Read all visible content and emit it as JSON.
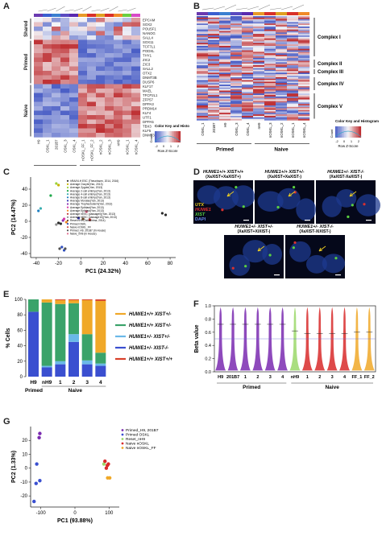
{
  "panels": {
    "A": {
      "label": "A",
      "row_groups": [
        "Shared",
        "Primed",
        "Naive"
      ],
      "shared_genes": [
        "EPCAM",
        "SOX2",
        "POU5F1",
        "NANOG",
        "SALL4"
      ],
      "primed_genes": [
        "SOX11",
        "TCF7L1",
        "PODXL",
        "THY1",
        "ZIC2",
        "ZIC3",
        "SALL2",
        "OTX2",
        "DNMT3B",
        "DUSP6"
      ],
      "naive_genes": [
        "KLF17",
        "MAEL",
        "TFCP2L1",
        "ZFP57",
        "DPPA3",
        "PRDM14",
        "KLF4",
        "UTF1",
        "DPPA5",
        "TBX3",
        "KLF5",
        "DNMT3L"
      ],
      "columns": [
        "H9",
        "OSKL_1",
        "201B7",
        "OSKL_3",
        "OSKL_4",
        "nOSKL_FF_1",
        "nOSKL_FF_2",
        "nOSKL_2",
        "nOSKL_3",
        "nH9",
        "nOSKL_1",
        "nOSKL_4"
      ],
      "groups": [
        "Primed",
        "Naive"
      ],
      "color_key": {
        "title": "Color Key and Histogram",
        "xlabel": "Row Z-Score",
        "ylabel": "Count",
        "ticks": [
          "-2",
          "0",
          "1",
          "2"
        ],
        "yticks": [
          "0",
          "4",
          "8",
          "12"
        ]
      }
    },
    "B": {
      "label": "B",
      "complexes": [
        "Complex I",
        "Complex II",
        "Complex III",
        "Complex IV",
        "Complex V"
      ],
      "columns": [
        "OSKL_1",
        "201B7",
        "H9",
        "OSKL_3",
        "OSKL_4",
        "nH9",
        "nOSKL_3",
        "nOSKL_2",
        "nOSKL_1",
        "nOSKL_4"
      ],
      "groups": [
        "Primed",
        "Naive"
      ],
      "color_key": {
        "title": "Color Key and Histogram",
        "xlabel": "Row Z-Score",
        "ylabel": "Count",
        "ticks": [
          "-2",
          "0",
          "1",
          "2"
        ],
        "yticks": [
          "0",
          "30"
        ]
      }
    },
    "C": {
      "label": "C",
      "xlabel": "PC1 (24.32%)",
      "ylabel": "PC2 (14.47%)",
      "xticks": [
        "-40",
        "-20",
        "0",
        "20",
        "40",
        "60",
        "80"
      ],
      "yticks": [
        "-40",
        "-20",
        "0",
        "20",
        "40"
      ],
      "legend": [
        "hRA/NI-H ESC (Theunissen, 2014, 2016)",
        "Average Oocyte(Yan, 2013)",
        "Average Zygote(Yan, 2013)",
        "Average 2-cell embryo(Yan, 2013)",
        "Average 4-cell embryo(Yan, 2013)",
        "Average 8-cell embryo(Yan, 2013)",
        "Average Morulae(Yan, 2013)",
        "Average Trophectoderm(Yan, 2013)",
        "Average Epiblast(Yan, 2013)",
        "Average Epiblast(Yan, 2013)",
        "Average hESC (passage0)(Yan, 2013)",
        "Average hESC (passage10)(Yan, 2013)",
        "Reset nH9 (Takashima, 2014)",
        "Primed OSKL",
        "Naive nOSKL_FF",
        "Primed_H9, 201B7 (In House)",
        "Naive_nH9 (In House)"
      ],
      "legend_colors": [
        "#2a2a2a",
        "#c8b400",
        "#9ad23a",
        "#1fa84a",
        "#3aaeb0",
        "#1e7fc2",
        "#3d3db5",
        "#8a2fb0",
        "#d83aa8",
        "#f08a2a",
        "#c03030",
        "#909090",
        "#6a4a2a",
        "#3050c0",
        "#d05050",
        "#505050",
        "#e07090"
      ],
      "chart_data": {
        "type": "scatter",
        "xlabel": "PC1 (24.32%)",
        "ylabel": "PC2 (14.47%)",
        "xlim": [
          -45,
          85
        ],
        "ylim": [
          -45,
          55
        ],
        "points": [
          {
            "x": -22,
            "y": 47,
            "c": "#9ad23a"
          },
          {
            "x": -20,
            "y": 45,
            "c": "#c8b400"
          },
          {
            "x": -27,
            "y": 32,
            "c": "#1fa84a"
          },
          {
            "x": -36,
            "y": 16,
            "c": "#3aaeb0"
          },
          {
            "x": -38,
            "y": 13,
            "c": "#1e7fc2"
          },
          {
            "x": -16,
            "y": 1,
            "c": "#8a2fb0"
          },
          {
            "x": -15,
            "y": 3,
            "c": "#d83aa8"
          },
          {
            "x": -13,
            "y": -1,
            "c": "#f08a2a"
          },
          {
            "x": -20,
            "y": -2,
            "c": "#2a2a2a"
          },
          {
            "x": -18,
            "y": -3,
            "c": "#2a2a2a"
          },
          {
            "x": -22,
            "y": -4,
            "c": "#909090"
          },
          {
            "x": -2,
            "y": 4,
            "c": "#3d3db5"
          },
          {
            "x": 2,
            "y": 3,
            "c": "#6a4a2a"
          },
          {
            "x": 8,
            "y": 2,
            "c": "#c03030"
          },
          {
            "x": -17,
            "y": -32,
            "c": "#3050c0"
          },
          {
            "x": -15,
            "y": -36,
            "c": "#3050c0"
          },
          {
            "x": -19,
            "y": -34,
            "c": "#505050"
          },
          {
            "x": -14,
            "y": -34,
            "c": "#505050"
          },
          {
            "x": 73,
            "y": 10,
            "c": "#2a2a2a"
          },
          {
            "x": 76,
            "y": 8,
            "c": "#2a2a2a"
          },
          {
            "x": 5,
            "y": 12,
            "c": "#e07090"
          }
        ]
      }
    },
    "D": {
      "label": "D",
      "titles": [
        "HUWE1+/+ XIST+/+",
        "HUWE1+/+ XIST+/-",
        "HUWE1+/- XIST-/-",
        "HUWE1+/- XIST+/-",
        "HUWE1+/- XIST-/-"
      ],
      "subtitles": [
        "(XaXIST+XaXIST+)",
        "(XaXIST+XaXIST-)",
        "(XaXIST-XaXIST-)",
        "(XaXIST+XiXIST-)",
        "(XaXIST-XiXIST-)"
      ],
      "stain_utx": "UTX",
      "stain_huwe1": "HUWE1",
      "stain_xist": "XIST",
      "stain_dapi": "DAPI"
    },
    "E": {
      "label": "E",
      "ylabel": "% Cells",
      "yticks": [
        "0",
        "20",
        "40",
        "60",
        "80",
        "100"
      ],
      "groups": [
        "Primed",
        "Naive"
      ],
      "legend": [
        "HUWE1+/+ XIST+/-",
        "HUWE1+/+ XIST+/-",
        "HUWE1+/- XIST+/-",
        "HUWE1+/- XIST-/-",
        "HUWE1+/+ XIST+/+"
      ],
      "legend_colors": [
        "#f0a828",
        "#3aa36a",
        "#6ab8e8",
        "#3a4fd0",
        "#d8402a"
      ],
      "chart_data": {
        "type": "bar",
        "stacked": true,
        "categories": [
          "H9",
          "nH9",
          "1",
          "2",
          "3",
          "4"
        ],
        "ylim": [
          0,
          100
        ],
        "series": [
          {
            "name": "HUWE1+/- XIST-/-",
            "color": "#3a4fd0",
            "values": [
              84,
              12,
              16,
              45,
              16,
              14
            ]
          },
          {
            "name": "HUWE1+/- XIST+/-",
            "color": "#6ab8e8",
            "values": [
              0,
              2,
              4,
              10,
              5,
              3
            ]
          },
          {
            "name": "HUWE1+/+ XIST+/-",
            "color": "#3aa36a",
            "values": [
              16,
              82,
              74,
              40,
              34,
              14
            ]
          },
          {
            "name": "HUWE1+/+ XIST+/-",
            "color": "#f0a828",
            "values": [
              0,
              4,
              5,
              4,
              44,
              67
            ]
          },
          {
            "name": "HUWE1+/+ XIST+/+",
            "color": "#d8402a",
            "values": [
              0,
              0,
              1,
              1,
              1,
              2
            ]
          }
        ]
      }
    },
    "F": {
      "label": "F",
      "ylabel": "Beta value",
      "yticks": [
        "0.0",
        "0.2",
        "0.4",
        "0.6",
        "0.8",
        "1.0"
      ],
      "groups": [
        "Primed",
        "Naive"
      ],
      "chart_data": {
        "type": "violin",
        "categories": [
          "H9",
          "201B7",
          "1",
          "2",
          "3",
          "4",
          "nH9",
          "1",
          "2",
          "3",
          "4",
          "FF_1",
          "FF_2"
        ],
        "colors": [
          "#7a2ab0",
          "#7a2ab0",
          "#7a2ab0",
          "#7a2ab0",
          "#7a2ab0",
          "#7a2ab0",
          "#9bd86a",
          "#d82a2a",
          "#d82a2a",
          "#d82a2a",
          "#d82a2a",
          "#f0a828",
          "#f0a828"
        ],
        "medians": [
          0.72,
          0.72,
          0.72,
          0.72,
          0.72,
          0.72,
          0.62,
          0.58,
          0.58,
          0.58,
          0.58,
          0.6,
          0.6
        ]
      }
    },
    "G": {
      "label": "G",
      "xlabel": "PC1 (93.88%)",
      "ylabel": "PC2 (1.33%)",
      "xticks": [
        "-100",
        "0",
        "100"
      ],
      "yticks": [
        "-20",
        "-10",
        "0",
        "10",
        "20"
      ],
      "legend": [
        "Primed_H9, 201B7",
        "Primed OSKL",
        "Reset_nH9",
        "Naive nOSKL",
        "Naive nOSKL_FF"
      ],
      "legend_colors": [
        "#7a2ab0",
        "#3a4fd0",
        "#9bd86a",
        "#d82a2a",
        "#f0a828"
      ],
      "chart_data": {
        "type": "scatter",
        "xlabel": "PC1 (93.88%)",
        "ylabel": "PC2 (1.33%)",
        "xlim": [
          -130,
          130
        ],
        "ylim": [
          -28,
          30
        ],
        "points": [
          {
            "x": -103,
            "y": 25,
            "c": "#7a2ab0"
          },
          {
            "x": -105,
            "y": 22,
            "c": "#7a2ab0"
          },
          {
            "x": -112,
            "y": 3,
            "c": "#3a4fd0"
          },
          {
            "x": -103,
            "y": -9,
            "c": "#3a4fd0"
          },
          {
            "x": -114,
            "y": -11,
            "c": "#3a4fd0"
          },
          {
            "x": -120,
            "y": -24,
            "c": "#3a4fd0"
          },
          {
            "x": 85,
            "y": 3,
            "c": "#9bd86a"
          },
          {
            "x": 88,
            "y": 5,
            "c": "#d82a2a"
          },
          {
            "x": 95,
            "y": 2,
            "c": "#d82a2a"
          },
          {
            "x": 92,
            "y": 0,
            "c": "#d82a2a"
          },
          {
            "x": 98,
            "y": 3,
            "c": "#d82a2a"
          },
          {
            "x": 96,
            "y": -7,
            "c": "#f0a828"
          },
          {
            "x": 102,
            "y": -7,
            "c": "#f0a828"
          }
        ]
      }
    }
  }
}
